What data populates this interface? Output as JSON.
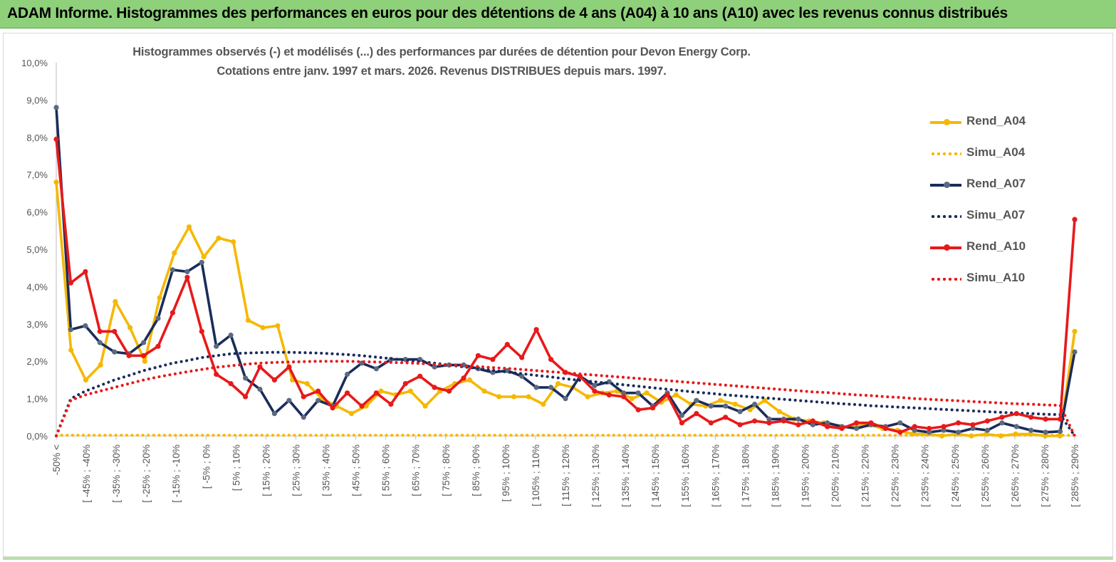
{
  "banner": {
    "title": "ADAM Informe. Histogrammes des performances en euros pour des détentions de 4 ans (A04) à 10 ans (A10) avec les revenus connus distribués"
  },
  "chart_data": {
    "type": "line",
    "title": "Histogrammes observés (-) et modélisés (...)  des performances par durées de détention pour Devon Energy Corp.",
    "subtitle": "Cotations entre janv. 1997 et mars. 2026.  Revenus DISTRIBUES depuis mars. 1997.",
    "ylim": [
      0,
      10
    ],
    "ytick_labels": [
      "0,0%",
      "1,0%",
      "2,0%",
      "3,0%",
      "4,0%",
      "5,0%",
      "6,0%",
      "7,0%",
      "8,0%",
      "9,0%",
      "10,0%"
    ],
    "xtick_labels": [
      "-50% <",
      "[ -45% ; -40%",
      "[ -35% ; -30%",
      "[ -25% ; -20%",
      "[ -15% ; -10%",
      "[ -5% ; 0%",
      "[ 5% ; 10%",
      "[ 15% ; 20%",
      "[ 25% ; 30%",
      "[ 35% ; 40%",
      "[ 45% ; 50%",
      "[ 55% ; 60%",
      "[ 65% ; 70%",
      "[ 75% ; 80%",
      "[ 85% ; 90%",
      "[ 95% ; 100%",
      "[ 105% ; 110%",
      "[ 115% ; 120%",
      "[ 125% ; 130%",
      "[ 135% ; 140%",
      "[ 145% ; 150%",
      "[ 155% ; 160%",
      "[ 165% ; 170%",
      "[ 175% ; 180%",
      "[ 185% ; 190%",
      "[ 195% ; 200%",
      "[ 205% ; 210%",
      "[ 215% ; 220%",
      "[ 225% ; 230%",
      "[ 235% ; 240%",
      "[ 245% ; 250%",
      "[ 255% ; 260%",
      "[ 265% ; 270%",
      "[ 275% ; 280%",
      "[ 285% ; 290%"
    ],
    "legend_placement": "right",
    "grid": false,
    "series": [
      {
        "name": "Rend_A04",
        "style": "solid",
        "color": "#f5b800",
        "values": [
          6.8,
          2.3,
          1.5,
          1.9,
          3.6,
          2.9,
          2.0,
          3.7,
          4.9,
          5.6,
          4.8,
          5.3,
          5.2,
          3.1,
          2.9,
          2.95,
          1.5,
          1.4,
          1.0,
          0.8,
          0.6,
          0.8,
          1.2,
          1.1,
          1.2,
          0.8,
          1.2,
          1.4,
          1.5,
          1.2,
          1.05,
          1.05,
          1.05,
          0.85,
          1.4,
          1.3,
          1.05,
          1.15,
          1.2,
          1.0,
          1.15,
          0.9,
          1.1,
          0.85,
          0.8,
          0.95,
          0.85,
          0.7,
          0.95,
          0.65,
          0.45,
          0.4,
          0.35,
          0.25,
          0.25,
          0.3,
          0.2,
          0.15,
          0.05,
          0.05,
          0.0,
          0.05,
          0.0,
          0.05,
          0.0,
          0.05,
          0.05,
          0.0,
          0.0,
          2.8
        ]
      },
      {
        "name": "Simu_A04",
        "style": "dotted",
        "color": "#f5b800",
        "values": [
          0.02,
          0.02,
          0.02,
          0.02,
          0.02,
          0.02,
          0.02,
          0.02,
          0.02,
          0.02,
          0.02,
          0.02,
          0.02,
          0.02,
          0.02,
          0.02,
          0.02,
          0.02,
          0.02,
          0.02,
          0.02,
          0.02,
          0.02,
          0.02,
          0.02,
          0.02,
          0.02,
          0.02,
          0.02,
          0.02,
          0.02,
          0.02,
          0.02,
          0.02,
          0.02,
          0.02,
          0.02,
          0.02,
          0.02,
          0.02,
          0.02,
          0.02,
          0.02,
          0.02,
          0.02,
          0.02,
          0.02,
          0.02,
          0.02,
          0.02,
          0.02,
          0.02,
          0.02,
          0.02,
          0.02,
          0.02,
          0.02,
          0.02,
          0.02,
          0.02,
          0.02,
          0.02,
          0.02,
          0.02,
          0.02,
          0.02,
          0.02,
          0.02,
          0.02,
          0.02
        ]
      },
      {
        "name": "Rend_A07",
        "style": "solid",
        "color": "#1a2c5b",
        "values": [
          8.8,
          2.85,
          2.95,
          2.5,
          2.25,
          2.2,
          2.5,
          3.15,
          4.45,
          4.4,
          4.65,
          2.4,
          2.7,
          1.55,
          1.25,
          0.6,
          0.95,
          0.5,
          0.95,
          0.8,
          1.65,
          1.95,
          1.8,
          2.05,
          2.05,
          2.05,
          1.85,
          1.9,
          1.9,
          1.8,
          1.7,
          1.75,
          1.6,
          1.3,
          1.3,
          1.0,
          1.6,
          1.35,
          1.45,
          1.15,
          1.15,
          0.8,
          1.15,
          0.55,
          0.95,
          0.8,
          0.8,
          0.65,
          0.85,
          0.45,
          0.45,
          0.45,
          0.3,
          0.35,
          0.25,
          0.2,
          0.3,
          0.25,
          0.35,
          0.15,
          0.1,
          0.15,
          0.1,
          0.2,
          0.15,
          0.35,
          0.25,
          0.15,
          0.1,
          0.12,
          2.25
        ]
      },
      {
        "name": "Simu_A07",
        "style": "dotted",
        "color": "#1a2c5b",
        "values": [
          0.0,
          1.0,
          1.2,
          1.35,
          1.5,
          1.62,
          1.75,
          1.85,
          1.95,
          2.02,
          2.1,
          2.15,
          2.2,
          2.22,
          2.23,
          2.24,
          2.24,
          2.23,
          2.22,
          2.2,
          2.18,
          2.15,
          2.11,
          2.07,
          2.03,
          1.99,
          1.95,
          1.9,
          1.85,
          1.81,
          1.76,
          1.71,
          1.67,
          1.62,
          1.58,
          1.53,
          1.49,
          1.45,
          1.41,
          1.37,
          1.33,
          1.29,
          1.25,
          1.21,
          1.17,
          1.14,
          1.1,
          1.07,
          1.04,
          1.01,
          0.98,
          0.95,
          0.92,
          0.89,
          0.86,
          0.84,
          0.81,
          0.79,
          0.77,
          0.75,
          0.73,
          0.71,
          0.69,
          0.67,
          0.65,
          0.63,
          0.61,
          0.6,
          0.58,
          0.57,
          0.0
        ]
      },
      {
        "name": "Rend_A10",
        "style": "solid",
        "color": "#e8191a",
        "values": [
          7.95,
          4.1,
          4.4,
          2.8,
          2.8,
          2.15,
          2.15,
          2.4,
          3.3,
          4.25,
          2.8,
          1.65,
          1.4,
          1.05,
          1.85,
          1.5,
          1.85,
          1.05,
          1.2,
          0.75,
          1.15,
          0.8,
          1.15,
          0.85,
          1.4,
          1.6,
          1.3,
          1.2,
          1.55,
          2.15,
          2.05,
          2.45,
          2.1,
          2.85,
          2.05,
          1.7,
          1.6,
          1.2,
          1.1,
          1.05,
          0.7,
          0.75,
          1.1,
          0.35,
          0.6,
          0.35,
          0.5,
          0.3,
          0.4,
          0.35,
          0.4,
          0.3,
          0.4,
          0.25,
          0.2,
          0.35,
          0.35,
          0.2,
          0.1,
          0.25,
          0.2,
          0.25,
          0.35,
          0.3,
          0.4,
          0.5,
          0.6,
          0.5,
          0.45,
          0.45,
          5.8
        ]
      },
      {
        "name": "Simu_A10",
        "style": "dotted",
        "color": "#e8191a",
        "values": [
          0.0,
          0.95,
          1.1,
          1.2,
          1.3,
          1.4,
          1.5,
          1.58,
          1.65,
          1.72,
          1.78,
          1.84,
          1.88,
          1.92,
          1.95,
          1.97,
          1.98,
          1.99,
          2.0,
          2.0,
          2.0,
          1.99,
          1.98,
          1.97,
          1.96,
          1.94,
          1.92,
          1.9,
          1.88,
          1.86,
          1.83,
          1.81,
          1.78,
          1.75,
          1.72,
          1.69,
          1.66,
          1.63,
          1.6,
          1.57,
          1.54,
          1.51,
          1.48,
          1.45,
          1.42,
          1.39,
          1.36,
          1.33,
          1.3,
          1.27,
          1.24,
          1.21,
          1.18,
          1.16,
          1.13,
          1.1,
          1.08,
          1.05,
          1.03,
          1.0,
          0.98,
          0.96,
          0.94,
          0.92,
          0.9,
          0.88,
          0.86,
          0.85,
          0.83,
          0.82,
          0.0
        ]
      }
    ]
  }
}
